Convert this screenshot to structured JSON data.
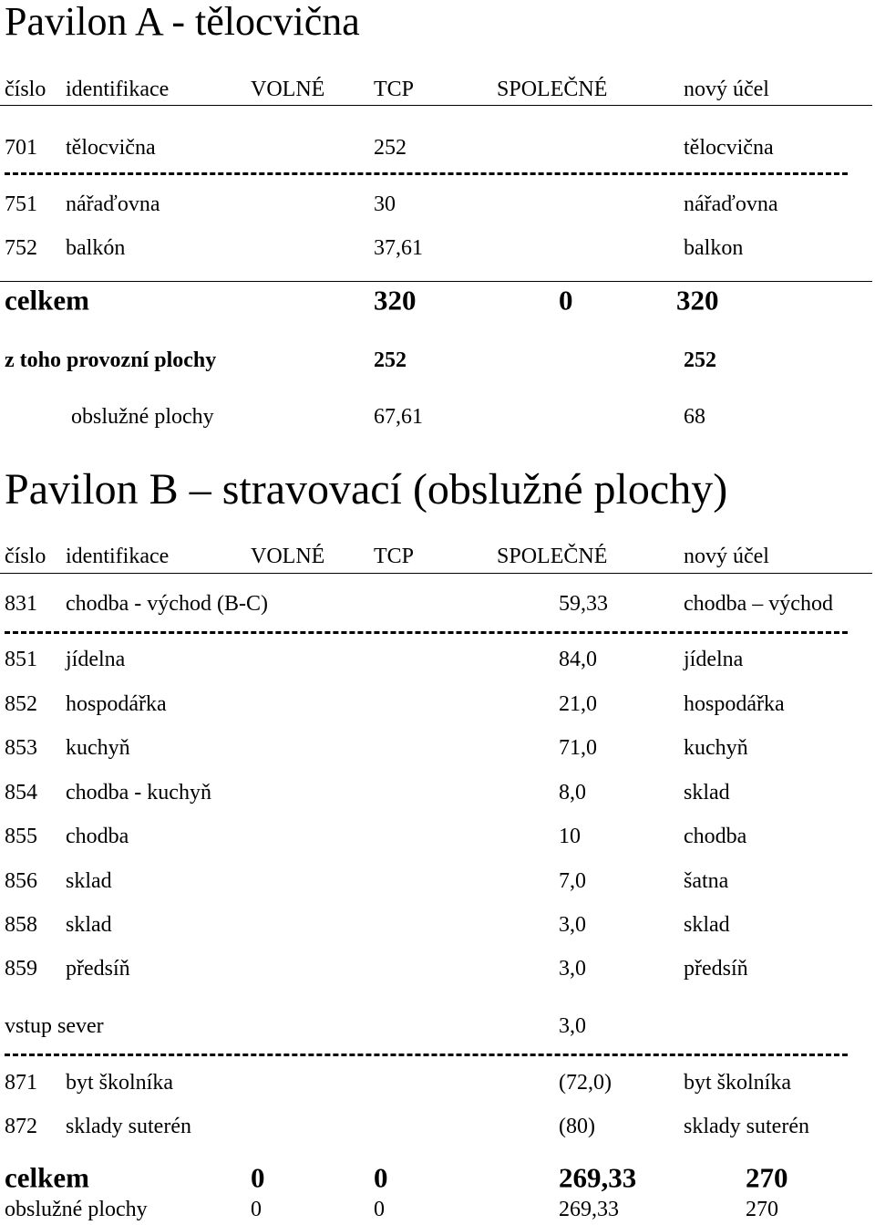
{
  "pavilon_a": {
    "title": "Pavilon A - tělocvična",
    "header": [
      "číslo",
      "identifikace",
      "VOLNÉ",
      "TCP",
      "SPOLEČNÉ",
      "nový účel"
    ],
    "rows": [
      [
        "701",
        "tělocvična",
        "252",
        "tělocvična"
      ],
      [
        "751",
        "nářaďovna",
        "30",
        "nářaďovna"
      ],
      [
        "752",
        "balkón",
        "37,61",
        "balkon"
      ]
    ],
    "total": {
      "label": "celkem",
      "values": [
        "320",
        "0",
        "320"
      ]
    },
    "provozni": {
      "label": "z toho provozní plochy",
      "values": [
        "252",
        "252"
      ]
    },
    "obsluzne": {
      "label": "obslužné plochy",
      "values": [
        "67,61",
        "68"
      ]
    }
  },
  "pavilon_b": {
    "title": "Pavilon B – stravovací (obslužné plochy)",
    "header": [
      "číslo",
      "identifikace",
      "VOLNÉ",
      "TCP",
      "SPOLEČNÉ",
      "nový účel"
    ],
    "rows": [
      [
        "831",
        "chodba - východ (B-C)",
        "59,33",
        "chodba – východ"
      ],
      [
        "851",
        "jídelna",
        "84,0",
        "jídelna"
      ],
      [
        "852",
        "hospodářka",
        "21,0",
        "hospodářka"
      ],
      [
        "853",
        "kuchyň",
        "71,0",
        "kuchyň"
      ],
      [
        "854",
        "chodba - kuchyň",
        "8,0",
        "sklad"
      ],
      [
        "855",
        "chodba",
        "10",
        "chodba"
      ],
      [
        "856",
        "sklad",
        "7,0",
        "šatna"
      ],
      [
        "858",
        "sklad",
        "3,0",
        "sklad"
      ],
      [
        "859",
        "předsíň",
        "3,0",
        "předsíň"
      ]
    ],
    "vstup": {
      "label": "vstup sever",
      "value": "3,0"
    },
    "rows_suteren": [
      [
        "871",
        "byt školníka",
        "(72,0)",
        "byt školníka"
      ],
      [
        "872",
        "sklady suterén",
        "(80)",
        "sklady suterén"
      ]
    ],
    "total": {
      "label": "celkem",
      "values": [
        "0",
        "0",
        "269,33",
        "270"
      ]
    },
    "obsluzne": {
      "label": "obslužné plochy",
      "values": [
        "0",
        "0",
        "269,33",
        "270"
      ]
    }
  }
}
